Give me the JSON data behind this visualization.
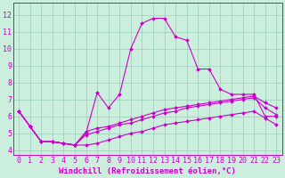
{
  "xlabel": "Windchill (Refroidissement éolien,°C)",
  "background_color": "#cceedd",
  "line_color": "#cc00cc",
  "xlim": [
    -0.5,
    23.5
  ],
  "ylim": [
    3.7,
    12.7
  ],
  "yticks": [
    4,
    5,
    6,
    7,
    8,
    9,
    10,
    11,
    12
  ],
  "xticks": [
    0,
    1,
    2,
    3,
    4,
    5,
    6,
    7,
    8,
    9,
    10,
    11,
    12,
    13,
    14,
    15,
    16,
    17,
    18,
    19,
    20,
    21,
    22,
    23
  ],
  "line1_x": [
    0,
    1,
    2,
    3,
    4,
    5,
    6,
    7,
    8,
    9,
    10,
    11,
    12,
    13,
    14,
    15,
    16,
    17,
    18,
    19,
    20,
    21,
    22,
    23
  ],
  "line1_y": [
    6.3,
    5.4,
    4.5,
    4.5,
    4.4,
    4.3,
    5.0,
    7.4,
    6.5,
    7.3,
    10.0,
    11.5,
    11.8,
    11.8,
    10.7,
    10.5,
    8.8,
    8.8,
    7.6,
    7.3,
    7.3,
    7.3,
    6.0,
    6.0
  ],
  "line2_x": [
    0,
    1,
    2,
    3,
    4,
    5,
    6,
    7,
    8,
    9,
    10,
    11,
    12,
    13,
    14,
    15,
    16,
    17,
    18,
    19,
    20,
    21,
    22,
    23
  ],
  "line2_y": [
    6.3,
    5.4,
    4.5,
    4.5,
    4.4,
    4.3,
    5.1,
    5.3,
    5.4,
    5.6,
    5.8,
    6.0,
    6.2,
    6.4,
    6.5,
    6.6,
    6.7,
    6.8,
    6.9,
    7.0,
    7.1,
    7.2,
    6.8,
    6.5
  ],
  "line3_x": [
    0,
    1,
    2,
    3,
    4,
    5,
    6,
    7,
    8,
    9,
    10,
    11,
    12,
    13,
    14,
    15,
    16,
    17,
    18,
    19,
    20,
    21,
    22,
    23
  ],
  "line3_y": [
    6.3,
    5.4,
    4.5,
    4.5,
    4.4,
    4.3,
    4.9,
    5.1,
    5.3,
    5.5,
    5.6,
    5.8,
    6.0,
    6.2,
    6.3,
    6.5,
    6.6,
    6.7,
    6.8,
    6.9,
    7.0,
    7.1,
    6.5,
    6.1
  ],
  "line4_x": [
    0,
    1,
    2,
    3,
    4,
    5,
    6,
    7,
    8,
    9,
    10,
    11,
    12,
    13,
    14,
    15,
    16,
    17,
    18,
    19,
    20,
    21,
    22,
    23
  ],
  "line4_y": [
    6.3,
    5.4,
    4.5,
    4.5,
    4.4,
    4.3,
    4.3,
    4.4,
    4.6,
    4.8,
    5.0,
    5.1,
    5.3,
    5.5,
    5.6,
    5.7,
    5.8,
    5.9,
    6.0,
    6.1,
    6.2,
    6.3,
    5.9,
    5.5
  ],
  "xlabel_fontsize": 6.5,
  "tick_fontsize": 6,
  "grid_color": "#99ccbb",
  "spine_color": "#cc00cc",
  "grid_linewidth": 0.5,
  "line_linewidth": 0.8,
  "marker_size": 2.0
}
